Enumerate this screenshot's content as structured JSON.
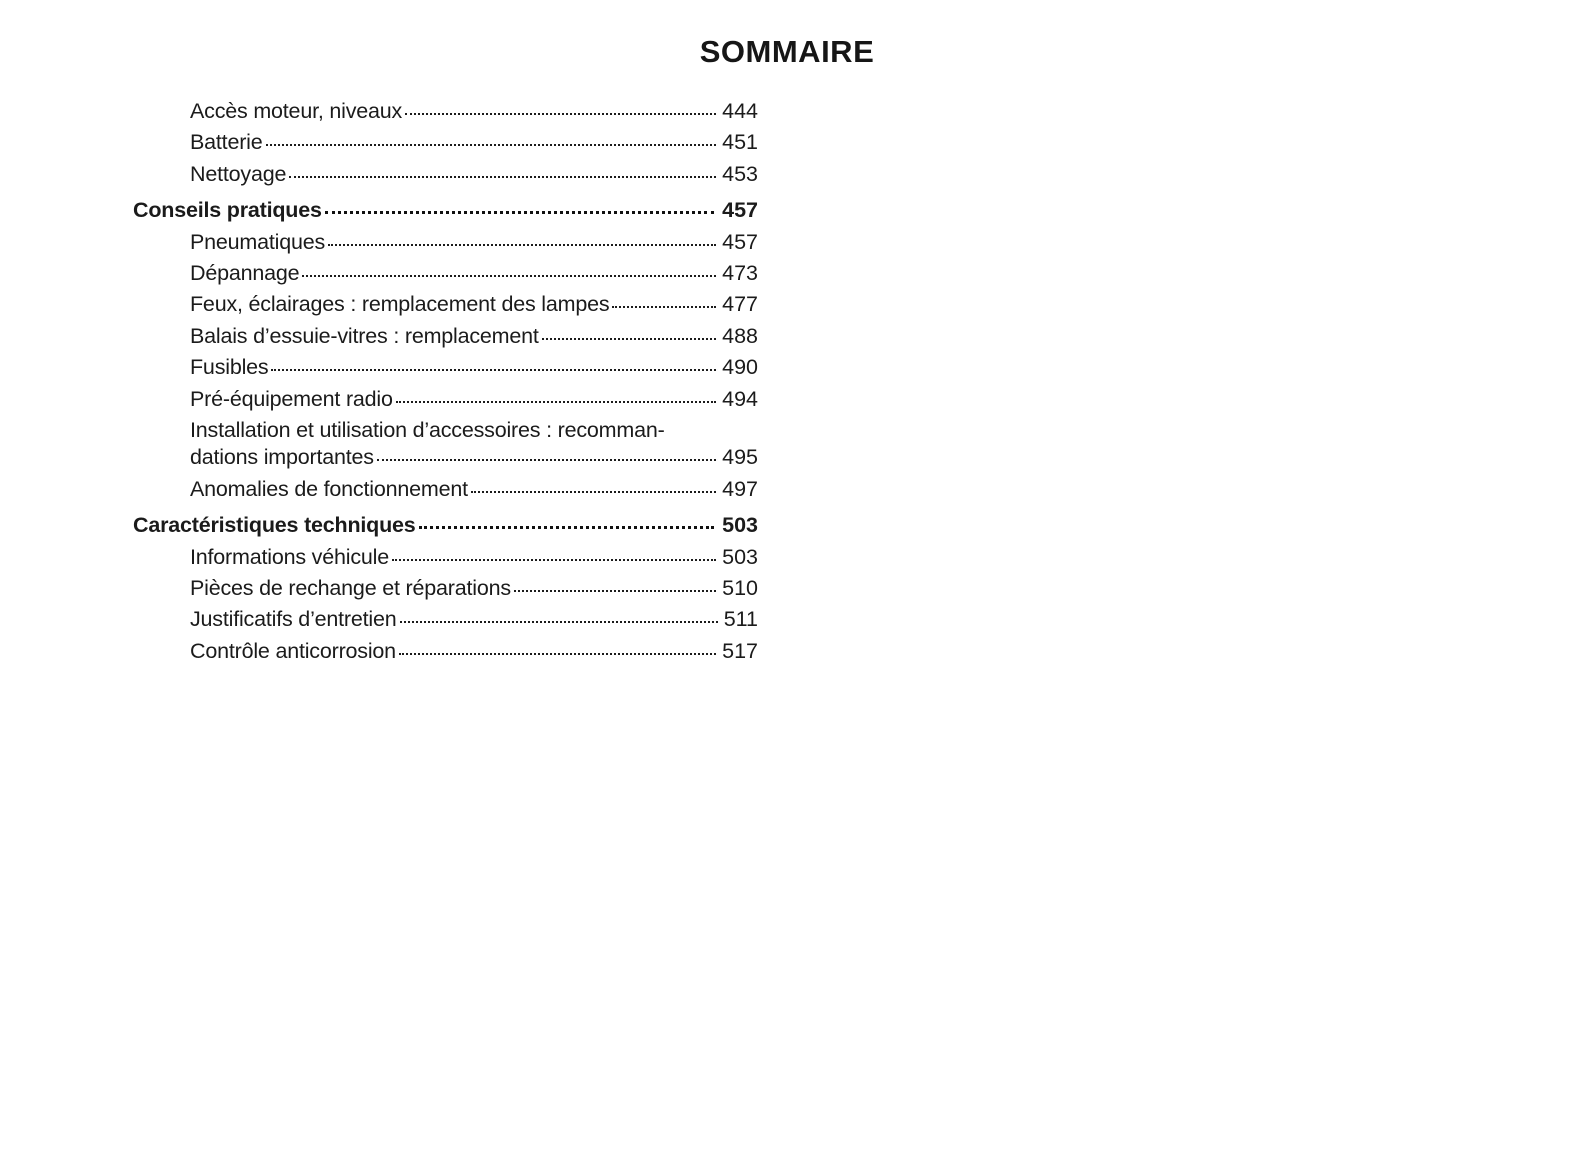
{
  "page": {
    "title": "SOMMAIRE"
  },
  "colors": {
    "background": "#ffffff",
    "text": "#1b1b1b"
  },
  "toc": {
    "entries": [
      {
        "label": "Accès moteur, niveaux",
        "page": "444",
        "level": 1
      },
      {
        "label": "Batterie",
        "page": "451",
        "level": 1
      },
      {
        "label": "Nettoyage",
        "page": "453",
        "level": 1
      },
      {
        "label": "Conseils pratiques",
        "page": "457",
        "level": 0
      },
      {
        "label": "Pneumatiques",
        "page": "457",
        "level": 1
      },
      {
        "label": "Dépannage",
        "page": "473",
        "level": 1
      },
      {
        "label": "Feux, éclairages : remplacement des lampes",
        "page": "477",
        "level": 1
      },
      {
        "label": "Balais d’essuie-vitres : remplacement",
        "page": "488",
        "level": 1
      },
      {
        "label": "Fusibles",
        "page": "490",
        "level": 1
      },
      {
        "label": "Pré-équipement radio",
        "page": "494",
        "level": 1
      },
      {
        "label": "Installation et utilisation d’accessoires : recomman-",
        "label2": "dations importantes",
        "page": "495",
        "level": 1
      },
      {
        "label": "Anomalies de fonctionnement",
        "page": "497",
        "level": 1
      },
      {
        "label": "Caractéristiques techniques",
        "page": "503",
        "level": 0
      },
      {
        "label": "Informations véhicule",
        "page": "503",
        "level": 1
      },
      {
        "label": "Pièces de rechange et réparations",
        "page": "510",
        "level": 1
      },
      {
        "label": "Justificatifs d’entretien",
        "page": "511",
        "level": 1
      },
      {
        "label": "Contrôle anticorrosion",
        "page": "517",
        "level": 1
      }
    ]
  }
}
